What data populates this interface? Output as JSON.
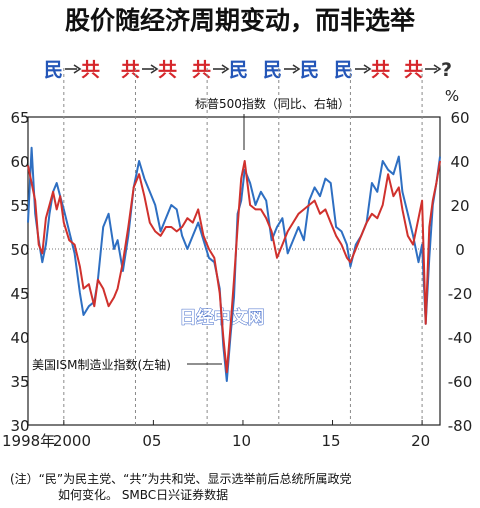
{
  "colors": {
    "democrat": "#2456b8",
    "republican": "#d6262b",
    "ism": "#2e6fc2",
    "sp500": "#d0312d",
    "grid": "#9a9a9a"
  },
  "watermark": "日经中文网",
  "chart_data": {
    "type": "line",
    "title": "股价随经济周期变动，而非选举",
    "party_transitions": [
      {
        "from": "民",
        "to": "共"
      },
      {
        "from": "共",
        "to": "共"
      },
      {
        "from": "共",
        "to": "民"
      },
      {
        "from": "民",
        "to": "民"
      },
      {
        "from": "民",
        "to": "共"
      },
      {
        "from": "共",
        "to": "?"
      }
    ],
    "x_ticks": [
      "1998年",
      "2000",
      "05",
      "10",
      "15",
      "20"
    ],
    "xlim": [
      1998,
      2021
    ],
    "y_left_ticks": [
      65,
      60,
      55,
      50,
      45,
      40,
      35,
      30
    ],
    "y_left_lim": [
      30,
      65
    ],
    "y_right_ticks": [
      60,
      40,
      20,
      0,
      -20,
      -40,
      -60,
      -80
    ],
    "y_right_lim": [
      -80,
      60
    ],
    "y_right_unit": "%",
    "grid": "dashed election-year verticals, dotted 50 reference",
    "series": [
      {
        "name": "美国ISM制造业指数(左轴)",
        "axis": "left",
        "color": "#2e6fc2",
        "x": [
          1998.0,
          1998.2,
          1998.4,
          1998.6,
          1998.8,
          1999.0,
          1999.2,
          1999.4,
          1999.6,
          1999.8,
          2000.0,
          2000.3,
          2000.6,
          2000.9,
          2001.1,
          2001.4,
          2001.7,
          2001.9,
          2002.2,
          2002.5,
          2002.8,
          2003.0,
          2003.3,
          2003.6,
          2003.9,
          2004.2,
          2004.5,
          2004.8,
          2005.1,
          2005.4,
          2005.7,
          2006.0,
          2006.3,
          2006.6,
          2006.9,
          2007.2,
          2007.5,
          2007.8,
          2008.1,
          2008.4,
          2008.7,
          2008.9,
          2009.1,
          2009.3,
          2009.5,
          2009.7,
          2009.9,
          2010.1,
          2010.4,
          2010.7,
          2011.0,
          2011.3,
          2011.6,
          2011.9,
          2012.2,
          2012.5,
          2012.8,
          2013.1,
          2013.4,
          2013.7,
          2014.0,
          2014.3,
          2014.6,
          2014.9,
          2015.2,
          2015.5,
          2015.8,
          2016.0,
          2016.3,
          2016.6,
          2016.9,
          2017.2,
          2017.5,
          2017.8,
          2018.1,
          2018.4,
          2018.7,
          2018.9,
          2019.2,
          2019.5,
          2019.8,
          2020.0,
          2020.2,
          2020.4,
          2020.6,
          2020.8,
          2021.0
        ],
        "y": [
          53.0,
          61.5,
          54.0,
          51.0,
          48.5,
          50.5,
          54.0,
          56.5,
          57.5,
          56.0,
          54.5,
          52.0,
          49.5,
          45.0,
          42.5,
          43.5,
          44.0,
          46.5,
          52.5,
          54.0,
          50.0,
          51.0,
          47.5,
          51.5,
          57.0,
          60.0,
          58.0,
          56.5,
          55.0,
          52.0,
          53.5,
          55.0,
          54.5,
          51.5,
          50.0,
          51.5,
          53.0,
          51.0,
          49.0,
          48.5,
          45.5,
          39.0,
          35.0,
          40.0,
          44.5,
          54.0,
          55.5,
          59.0,
          57.5,
          55.0,
          56.5,
          55.5,
          51.0,
          52.5,
          53.5,
          49.5,
          51.0,
          52.5,
          51.0,
          55.5,
          57.0,
          56.0,
          58.0,
          57.5,
          52.5,
          52.0,
          50.5,
          48.0,
          50.5,
          51.5,
          53.0,
          57.5,
          56.5,
          60.0,
          59.0,
          58.5,
          60.5,
          56.5,
          54.0,
          51.5,
          48.5,
          50.5,
          41.5,
          49.0,
          55.0,
          57.5,
          60.5
        ]
      },
      {
        "name": "标普500指数（同比、右轴）",
        "axis": "right",
        "color": "#d0312d",
        "x": [
          1998.0,
          1998.2,
          1998.4,
          1998.6,
          1998.8,
          1999.0,
          1999.2,
          1999.4,
          1999.6,
          1999.8,
          2000.0,
          2000.3,
          2000.6,
          2000.9,
          2001.1,
          2001.4,
          2001.7,
          2001.9,
          2002.2,
          2002.5,
          2002.8,
          2003.0,
          2003.3,
          2003.6,
          2003.9,
          2004.2,
          2004.5,
          2004.8,
          2005.1,
          2005.4,
          2005.7,
          2006.0,
          2006.3,
          2006.6,
          2006.9,
          2007.2,
          2007.5,
          2007.8,
          2008.1,
          2008.4,
          2008.7,
          2008.9,
          2009.1,
          2009.3,
          2009.5,
          2009.7,
          2009.9,
          2010.1,
          2010.4,
          2010.7,
          2011.0,
          2011.3,
          2011.6,
          2011.9,
          2012.2,
          2012.5,
          2012.8,
          2013.1,
          2013.4,
          2013.7,
          2014.0,
          2014.3,
          2014.6,
          2014.9,
          2015.2,
          2015.5,
          2015.8,
          2016.0,
          2016.3,
          2016.6,
          2016.9,
          2017.2,
          2017.5,
          2017.8,
          2018.1,
          2018.4,
          2018.7,
          2018.9,
          2019.2,
          2019.5,
          2019.8,
          2020.0,
          2020.2,
          2020.4,
          2020.6,
          2020.8,
          2021.0
        ],
        "y": [
          38,
          30,
          22,
          2,
          -2,
          14,
          20,
          26,
          18,
          24,
          12,
          4,
          2,
          -8,
          -18,
          -16,
          -26,
          -14,
          -18,
          -26,
          -22,
          -18,
          -6,
          10,
          28,
          34,
          24,
          12,
          8,
          6,
          10,
          10,
          8,
          10,
          14,
          12,
          18,
          6,
          0,
          -4,
          -20,
          -40,
          -56,
          -36,
          -14,
          10,
          32,
          40,
          20,
          18,
          18,
          14,
          8,
          -4,
          2,
          8,
          12,
          16,
          18,
          20,
          22,
          16,
          18,
          12,
          6,
          2,
          -4,
          -6,
          0,
          6,
          12,
          16,
          14,
          20,
          34,
          24,
          28,
          18,
          6,
          2,
          14,
          22,
          -34,
          10,
          22,
          30,
          40
        ]
      }
    ],
    "annotations": [
      "标普500指数（同比、右轴）",
      "美国ISM制造业指数(左轴)"
    ],
    "notes": [
      "(注）“民”为民主党、“共”为共和党、显示选举前后总统所属政党",
      "如何变化。 SMBC日兴证券数据"
    ]
  }
}
